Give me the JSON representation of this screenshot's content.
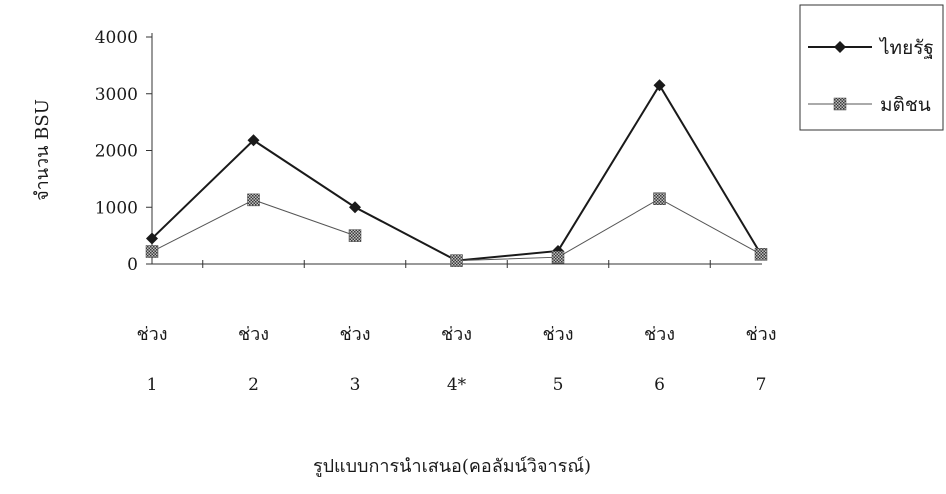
{
  "chart_data": {
    "type": "line",
    "categories": [
      {
        "word": "ช่วง",
        "num": "1"
      },
      {
        "word": "ช่วง",
        "num": "2"
      },
      {
        "word": "ช่วง",
        "num": "3"
      },
      {
        "word": "ช่วง",
        "num": "4*"
      },
      {
        "word": "ช่วง",
        "num": "5"
      },
      {
        "word": "ช่วง",
        "num": "6"
      },
      {
        "word": "ช่วง",
        "num": "7"
      }
    ],
    "series": [
      {
        "name": "ไทยรัฐ",
        "marker": "diamond",
        "color": "#1a1a1a",
        "values": [
          450,
          2180,
          1000,
          60,
          230,
          3150,
          170
        ]
      },
      {
        "name": "มติชน",
        "marker": "hatched-square",
        "color": "#555555",
        "values": [
          220,
          1130,
          500,
          60,
          120,
          1150,
          170
        ],
        "gaps_after_index": [
          2
        ]
      }
    ],
    "ylabel": "จำนวน BSU",
    "xlabel": "รูปแบบการนำเสนอ(คอลัมน์วิจารณ์)",
    "ylim": [
      0,
      4000
    ],
    "yticks": [
      0,
      1000,
      2000,
      3000,
      4000
    ],
    "grid": false,
    "legend": "top-right"
  }
}
